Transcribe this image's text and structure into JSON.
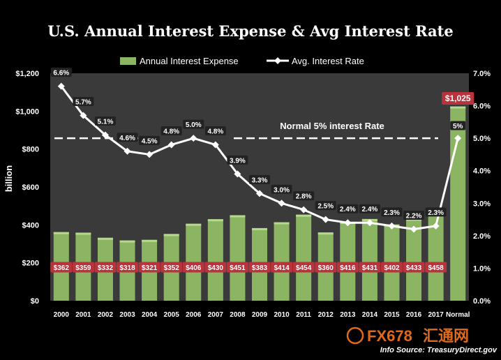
{
  "title": "U.S. Annual Interest Expense & Avg Interest Rate",
  "legend": {
    "bars": "Annual Interest Expense",
    "line": "Avg. Interest Rate"
  },
  "watermark": {
    "text": "FX678",
    "text_cn": "汇通网"
  },
  "source": "Info Source: TreasuryDirect.gov",
  "colors": {
    "background": "#000000",
    "plot_area": "#3a3a3a",
    "bar": "#8cb563",
    "bar_label_bg": "#b8333b",
    "line": "#ffffff",
    "rate_label_bg": "#222222",
    "watermark": "#e06a1a"
  },
  "chart_data": {
    "type": "bar",
    "title": "U.S. Annual Interest Expense & Avg Interest Rate",
    "categories": [
      "2000",
      "2001",
      "2002",
      "2003",
      "2004",
      "2005",
      "2006",
      "2007",
      "2008",
      "2009",
      "2010",
      "2011",
      "2012",
      "2013",
      "2014",
      "2015",
      "2016",
      "2017",
      "Normal"
    ],
    "series": [
      {
        "name": "Annual Interest Expense",
        "kind": "bar",
        "axis": "left",
        "values": [
          362,
          359,
          332,
          318,
          321,
          352,
          406,
          430,
          451,
          383,
          414,
          454,
          360,
          416,
          431,
          402,
          433,
          458,
          1025
        ],
        "labels": [
          "$362",
          "$359",
          "$332",
          "$318",
          "$321",
          "$352",
          "$406",
          "$430",
          "$451",
          "$383",
          "$414",
          "$454",
          "$360",
          "$416",
          "$431",
          "$402",
          "$433",
          "$458",
          "$1,025"
        ]
      },
      {
        "name": "Avg. Interest Rate",
        "kind": "line",
        "axis": "right",
        "values": [
          6.6,
          5.7,
          5.1,
          4.6,
          4.5,
          4.8,
          5.0,
          4.8,
          3.9,
          3.3,
          3.0,
          2.8,
          2.5,
          2.4,
          2.4,
          2.3,
          2.2,
          2.3,
          5.0
        ],
        "labels": [
          "6.6%",
          "5.7%",
          "5.1%",
          "4.6%",
          "4.5%",
          "4.8%",
          "5.0%",
          "4.8%",
          "3.9%",
          "3.3%",
          "3.0%",
          "2.8%",
          "2.5%",
          "2.4%",
          "2.4%",
          "2.3%",
          "2.2%",
          "2.3%",
          "5%"
        ]
      }
    ],
    "ylabel": "billion",
    "ylim": [
      0,
      1200
    ],
    "y_ticks": [
      "$0",
      "$200",
      "$400",
      "$600",
      "$800",
      "$1,000",
      "$1,200"
    ],
    "y_tick_values": [
      0,
      200,
      400,
      600,
      800,
      1000,
      1200
    ],
    "y2lim": [
      0,
      7
    ],
    "y2_ticks": [
      "0.0%",
      "1.0%",
      "2.0%",
      "3.0%",
      "4.0%",
      "5.0%",
      "6.0%",
      "7.0%"
    ],
    "y2_tick_values": [
      0,
      1,
      2,
      3,
      4,
      5,
      6,
      7
    ],
    "reference_line": {
      "value": 5.0,
      "axis": "right",
      "label": "Normal 5% interest Rate",
      "style": "dashed"
    },
    "grid": false,
    "legend_position": "top-center"
  }
}
